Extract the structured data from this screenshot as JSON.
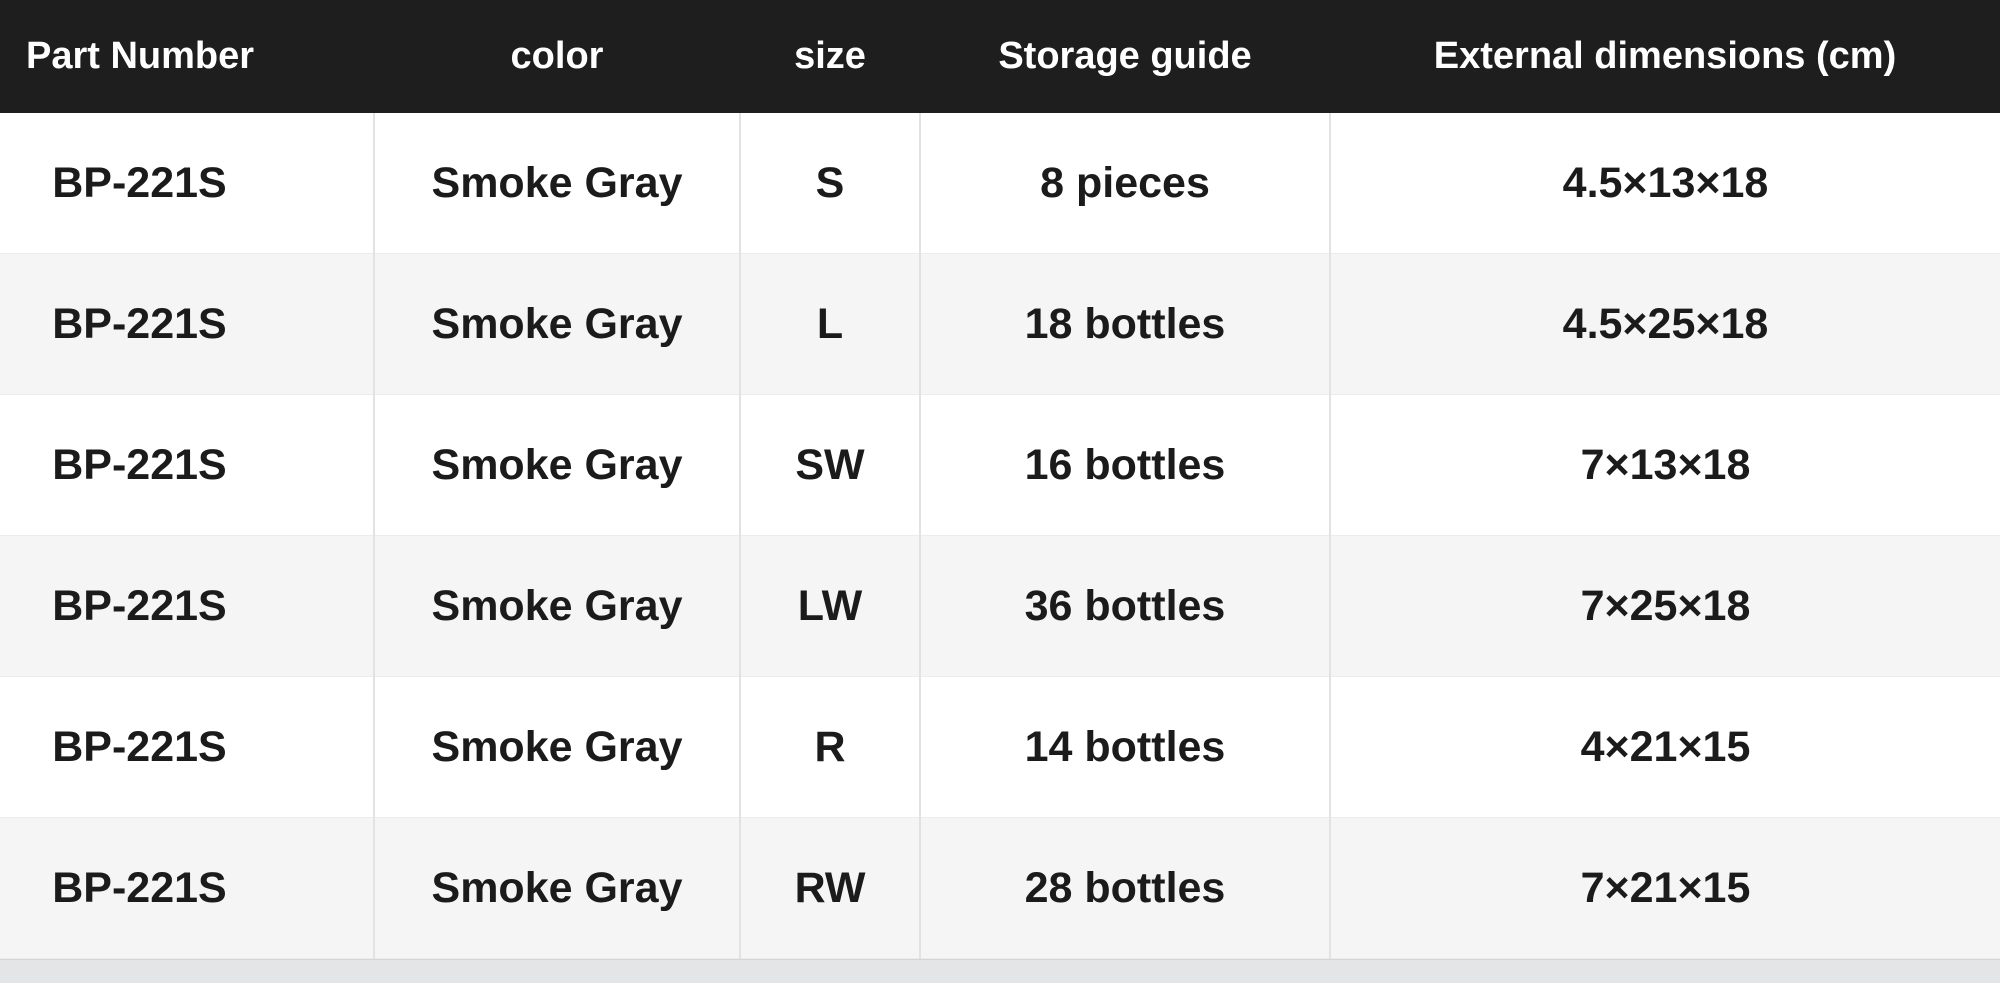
{
  "table": {
    "columns": [
      {
        "key": "part-number",
        "label": "Part Number"
      },
      {
        "key": "color",
        "label": "color"
      },
      {
        "key": "size",
        "label": "size"
      },
      {
        "key": "storage-guide",
        "label": "Storage guide"
      },
      {
        "key": "external-dimensions",
        "label": "External dimensions (cm)"
      }
    ],
    "rows": [
      [
        "BP-221S",
        "Smoke Gray",
        "S",
        "8 pieces",
        "4.5×13×18"
      ],
      [
        "BP-221S",
        "Smoke Gray",
        "L",
        "18 bottles",
        "4.5×25×18"
      ],
      [
        "BP-221S",
        "Smoke Gray",
        "SW",
        "16 bottles",
        "7×13×18"
      ],
      [
        "BP-221S",
        "Smoke Gray",
        "LW",
        "36 bottles",
        "7×25×18"
      ],
      [
        "BP-221S",
        "Smoke Gray",
        "R",
        "14 bottles",
        "4×21×15"
      ],
      [
        "BP-221S",
        "Smoke Gray",
        "RW",
        "28 bottles",
        "7×21×15"
      ]
    ]
  },
  "colors": {
    "header_bg": "#1e1e1e",
    "header_text": "#ffffff",
    "row_bg": "#ffffff",
    "row_alt_bg": "#f5f5f6",
    "body_text": "#1b1b1b",
    "divider": "#e2e2e2",
    "page_strip_bg": "#e3e5e6"
  },
  "chart_data": {
    "type": "table",
    "title": "",
    "columns": [
      "Part Number",
      "color",
      "size",
      "Storage guide",
      "External dimensions (cm)"
    ],
    "rows": [
      [
        "BP-221S",
        "Smoke Gray",
        "S",
        "8 pieces",
        "4.5×13×18"
      ],
      [
        "BP-221S",
        "Smoke Gray",
        "L",
        "18 bottles",
        "4.5×25×18"
      ],
      [
        "BP-221S",
        "Smoke Gray",
        "SW",
        "16 bottles",
        "7×13×18"
      ],
      [
        "BP-221S",
        "Smoke Gray",
        "LW",
        "36 bottles",
        "7×25×18"
      ],
      [
        "BP-221S",
        "Smoke Gray",
        "R",
        "14 bottles",
        "4×21×15"
      ],
      [
        "BP-221S",
        "Smoke Gray",
        "RW",
        "28 bottles",
        "7×21×15"
      ]
    ]
  }
}
